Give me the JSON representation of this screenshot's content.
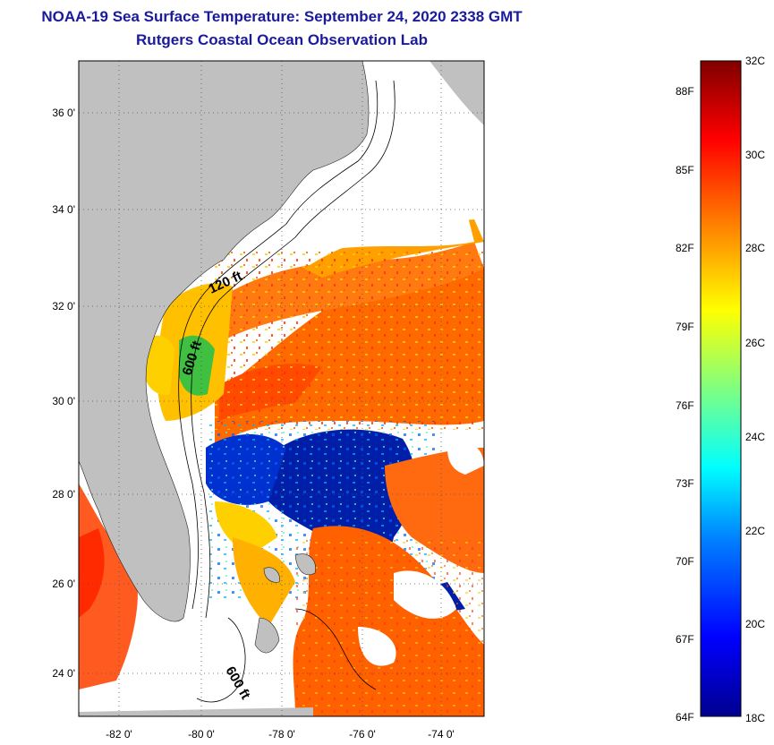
{
  "header": {
    "title": "NOAA-19 Sea Surface Temperature:  September 24, 2020 2338 GMT",
    "subtitle": "Rutgers Coastal Ocean Observation Lab"
  },
  "map": {
    "lat_labels": [
      "36 0'",
      "34 0'",
      "32 0'",
      "30 0'",
      "28 0'",
      "26 0'",
      "24 0'"
    ],
    "lon_labels": [
      "-82 0'",
      "-80 0'",
      "-78 0'",
      "-76 0'",
      "-74 0'"
    ],
    "contour_labels": [
      "120 ft",
      "600 ft",
      "600 ft"
    ],
    "land_color": "#c0c0c0",
    "cloud_color": "#ffffff"
  },
  "colorbar": {
    "celsius_labels": [
      "32C",
      "30C",
      "28C",
      "26C",
      "24C",
      "22C",
      "20C",
      "18C"
    ],
    "fahrenheit_labels": [
      "88F",
      "85F",
      "82F",
      "79F",
      "76F",
      "73F",
      "70F",
      "67F",
      "64F"
    ],
    "min_c": 18,
    "max_c": 32,
    "colors": [
      "#00008f",
      "#0000ff",
      "#0080ff",
      "#00ffff",
      "#80ff80",
      "#ffff00",
      "#ff8000",
      "#ff0000",
      "#800000"
    ]
  }
}
